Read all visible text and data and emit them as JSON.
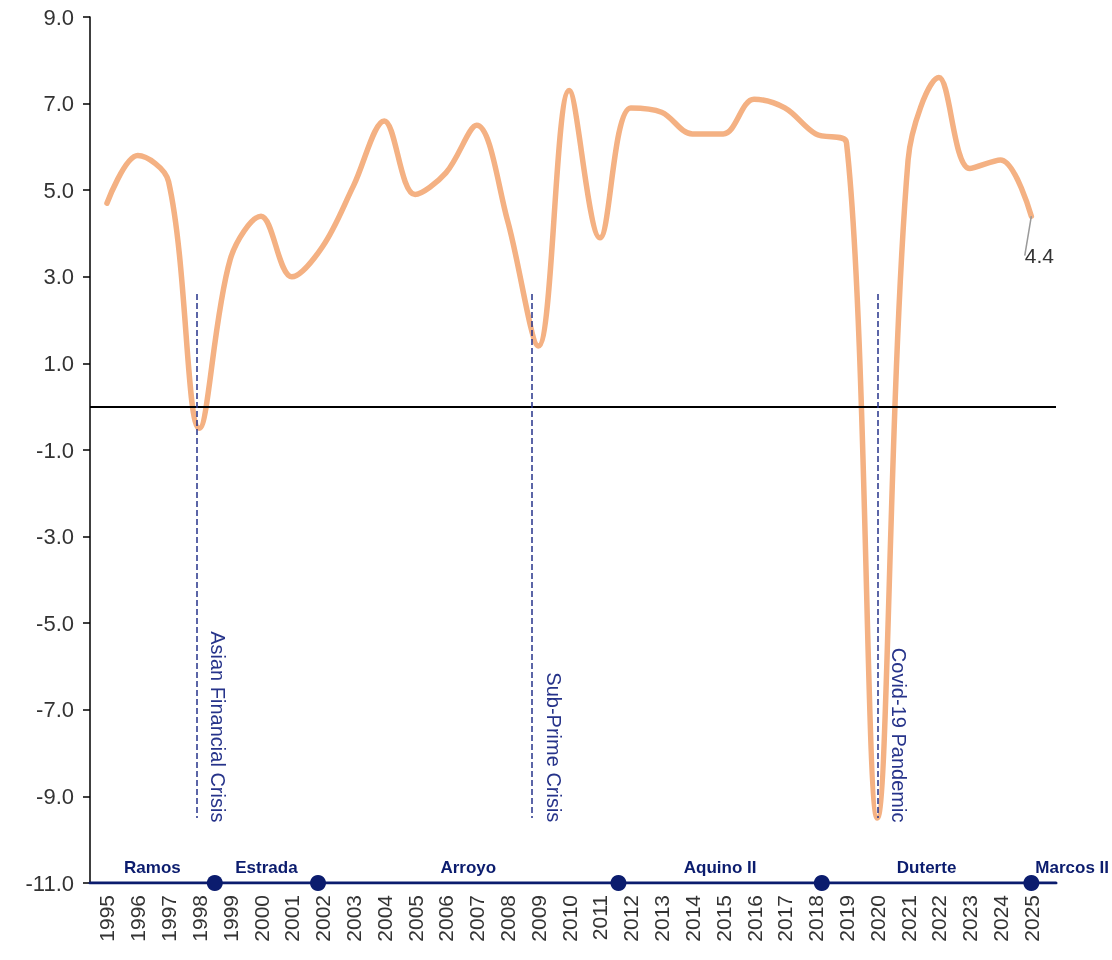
{
  "chart_data": {
    "type": "line",
    "x": [
      1995,
      1996,
      1997,
      1998,
      1999,
      2000,
      2001,
      2002,
      2003,
      2004,
      2005,
      2006,
      2007,
      2008,
      2009,
      2010,
      2011,
      2012,
      2013,
      2014,
      2015,
      2016,
      2017,
      2018,
      2019,
      2020,
      2021,
      2022,
      2023,
      2024,
      2025
    ],
    "xlim": [
      1994.45,
      2025.8
    ],
    "xticks": [
      1995,
      1996,
      1997,
      1998,
      1999,
      2000,
      2001,
      2002,
      2003,
      2004,
      2005,
      2006,
      2007,
      2008,
      2009,
      2010,
      2011,
      2012,
      2013,
      2014,
      2015,
      2016,
      2017,
      2018,
      2019,
      2020,
      2021,
      2022,
      2023,
      2024,
      2025
    ],
    "ylim": [
      -11,
      9
    ],
    "yticks": [
      {
        "value": -11,
        "label": "-11.0"
      },
      {
        "value": -9,
        "label": "-9.0"
      },
      {
        "value": -7,
        "label": "-7.0"
      },
      {
        "value": -5,
        "label": "-5.0"
      },
      {
        "value": -3,
        "label": "-3.0"
      },
      {
        "value": -1,
        "label": "-1.0"
      },
      {
        "value": 1,
        "label": "1.0"
      },
      {
        "value": 3,
        "label": "3.0"
      },
      {
        "value": 5,
        "label": "5.0"
      },
      {
        "value": 7,
        "label": "7.0"
      },
      {
        "value": 9,
        "label": "9.0"
      }
    ],
    "series": [
      {
        "color": "#f4b183",
        "marker": "none",
        "line_style": "solid",
        "values": [
          4.7,
          5.8,
          5.2,
          -0.5,
          3.4,
          4.4,
          3.0,
          3.7,
          5.1,
          6.6,
          4.9,
          5.4,
          6.5,
          4.3,
          1.4,
          7.3,
          3.9,
          6.9,
          6.8,
          6.3,
          6.3,
          7.1,
          6.9,
          6.3,
          6.1,
          -9.5,
          5.7,
          7.6,
          5.5,
          5.7,
          4.4
        ],
        "value_labels": [
          null,
          null,
          null,
          null,
          null,
          null,
          null,
          null,
          null,
          null,
          null,
          null,
          null,
          null,
          null,
          null,
          null,
          null,
          null,
          null,
          null,
          null,
          null,
          null,
          null,
          null,
          null,
          null,
          null,
          null,
          "4.4"
        ]
      },
      {
        "color": "#0b1c6e",
        "marker": "circle",
        "line_style": "solid",
        "x": [
          1994.45,
          1998.5,
          2001.85,
          2011.6,
          2018.2,
          2025,
          2025.8
        ],
        "values": [
          -11,
          -11,
          -11,
          -11,
          -11,
          -11,
          -11
        ]
      }
    ],
    "ref_lines": [
      {
        "axis": "y",
        "value": 0,
        "color": "#000000",
        "line_style": "solid"
      },
      {
        "axis": "x",
        "value": 1997.9,
        "label": "Asian Financial Crisis",
        "color": "#26338a",
        "line_style": "dashed"
      },
      {
        "axis": "x",
        "value": 2008.8,
        "label": "Sub-Prime Crisis",
        "color": "#26338a",
        "line_style": "dashed"
      },
      {
        "axis": "x",
        "value": 2020,
        "label": "Covid-19 Pandemic",
        "color": "#26338a",
        "line_style": "dashed"
      }
    ],
    "annotations": [
      "Ramos",
      "Estrada",
      "Arroyo",
      "Aquino II",
      "Duterte",
      "Marcos II"
    ]
  }
}
